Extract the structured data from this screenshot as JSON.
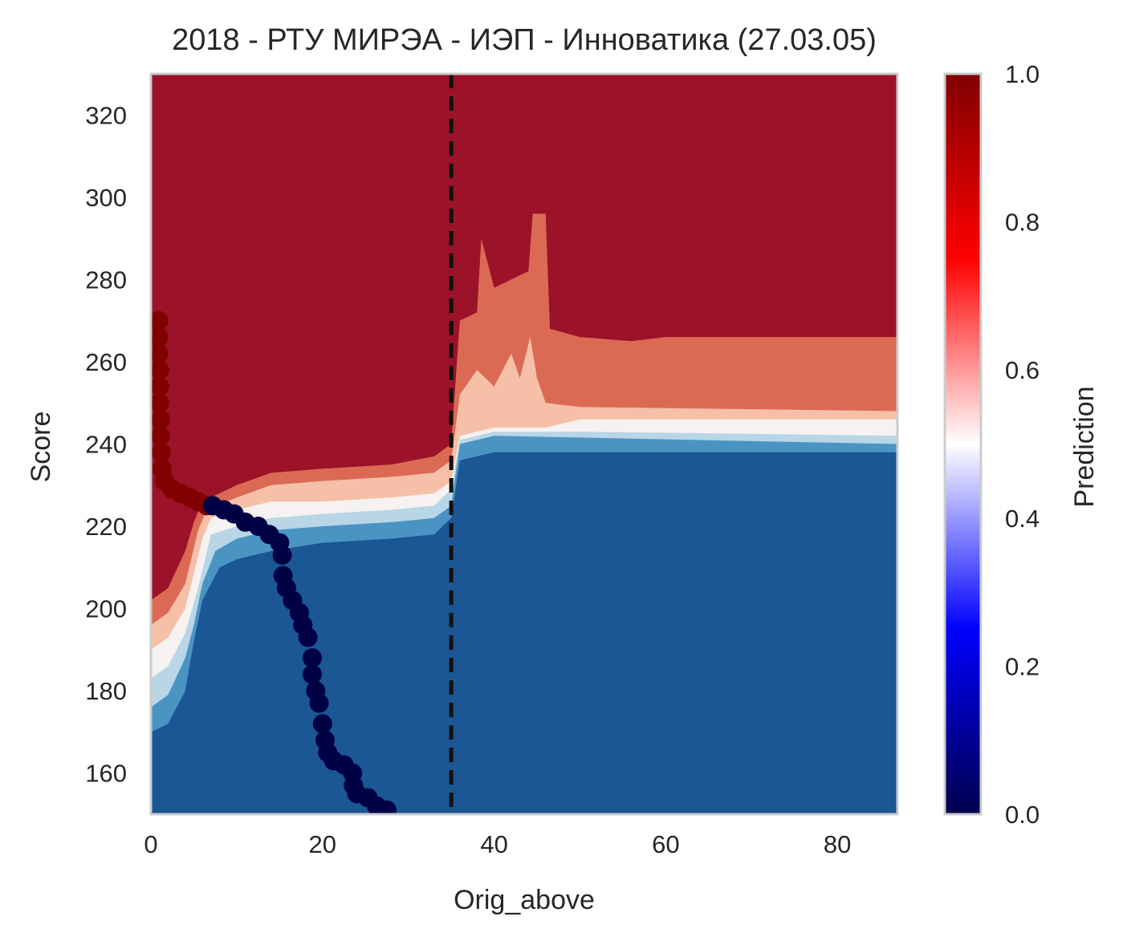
{
  "chart_data": {
    "type": "heatmap",
    "title": "2018 - РТУ МИРЭА - ИЭП - Инноватика (27.03.05)",
    "xlabel": "Orig_above",
    "ylabel": "Score",
    "xlim": [
      0,
      87
    ],
    "ylim": [
      150,
      330
    ],
    "xticks": [
      "0",
      "20",
      "40",
      "60",
      "80"
    ],
    "yticks": [
      "160",
      "180",
      "200",
      "220",
      "240",
      "260",
      "280",
      "300",
      "320"
    ],
    "colorbar": {
      "label": "Prediction",
      "range": [
        0.0,
        1.0
      ],
      "ticks": [
        "0.0",
        "0.2",
        "0.4",
        "0.6",
        "0.8",
        "1.0"
      ],
      "colormap": "seismic"
    },
    "contour_levels": [
      {
        "level": 0.9,
        "color": "#9b1229"
      },
      {
        "level": 0.75,
        "color": "#db6a55"
      },
      {
        "level": 0.6,
        "color": "#f6c0a8"
      },
      {
        "level": 0.5,
        "color": "#f5f2f1"
      },
      {
        "level": 0.4,
        "color": "#b8d6e6"
      },
      {
        "level": 0.25,
        "color": "#4a94c4"
      },
      {
        "level": 0.1,
        "color": "#1b5695"
      }
    ],
    "threshold_line": {
      "x": 35,
      "style": "dashed",
      "color": "#111111"
    },
    "series": [
      {
        "prediction": 1,
        "color": "#800000",
        "points": [
          [
            0.9,
            270
          ],
          [
            0.9,
            266
          ],
          [
            0.9,
            262
          ],
          [
            1.0,
            258
          ],
          [
            1.0,
            254
          ],
          [
            1.0,
            250
          ],
          [
            1.1,
            246
          ],
          [
            1.1,
            242
          ],
          [
            1.2,
            238
          ],
          [
            1.3,
            234
          ],
          [
            1.6,
            231
          ],
          [
            2.5,
            229
          ],
          [
            3.5,
            228
          ],
          [
            4.5,
            227
          ],
          [
            5.5,
            226
          ],
          [
            6.5,
            225
          ],
          [
            7.2,
            225
          ]
        ]
      },
      {
        "prediction": 0,
        "color": "#000045",
        "points": [
          [
            7.2,
            225
          ],
          [
            8.5,
            224
          ],
          [
            9.7,
            223
          ],
          [
            11,
            221
          ],
          [
            12.5,
            220
          ],
          [
            13.8,
            218
          ],
          [
            15.0,
            216
          ],
          [
            15.3,
            213
          ],
          [
            15.4,
            208
          ],
          [
            15.8,
            205
          ],
          [
            16.5,
            202
          ],
          [
            17.3,
            199
          ],
          [
            17.7,
            196
          ],
          [
            18.3,
            193
          ],
          [
            18.8,
            188
          ],
          [
            18.8,
            184
          ],
          [
            19.2,
            180
          ],
          [
            19.6,
            177
          ],
          [
            20.0,
            172
          ],
          [
            20.3,
            168
          ],
          [
            20.6,
            165
          ],
          [
            21.3,
            163
          ],
          [
            22.5,
            162
          ],
          [
            23.5,
            160
          ],
          [
            23.6,
            157
          ],
          [
            24.0,
            155
          ],
          [
            25.3,
            154
          ],
          [
            26.3,
            152
          ],
          [
            27.5,
            151
          ]
        ]
      }
    ]
  }
}
